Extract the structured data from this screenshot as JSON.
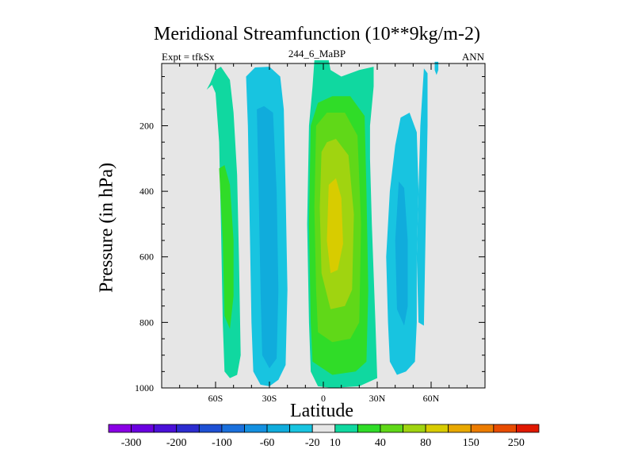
{
  "title": "Meridional Streamfunction (10**9kg/m-2)",
  "left_string": "Expt = tfkSx",
  "center_string": "244_6_MaBP",
  "right_string": "ANN",
  "chart_data": {
    "type": "heatmap",
    "title": "Meridional Streamfunction (10**9kg/m-2)",
    "xlabel": "Latitude",
    "ylabel": "Pressure (in hPa)",
    "xlim": [
      -90,
      90
    ],
    "ylim": [
      1000,
      10
    ],
    "x_ticks": [
      {
        "value": -60,
        "label": "60S"
      },
      {
        "value": -30,
        "label": "30S"
      },
      {
        "value": 0,
        "label": "0"
      },
      {
        "value": 30,
        "label": "30N"
      },
      {
        "value": 60,
        "label": "60N"
      }
    ],
    "y_ticks": [
      {
        "value": 200,
        "label": "200"
      },
      {
        "value": 400,
        "label": "400"
      },
      {
        "value": 600,
        "label": "600"
      },
      {
        "value": 800,
        "label": "800"
      },
      {
        "value": 1000,
        "label": "1000"
      }
    ],
    "background_color": "#e6e6e6",
    "colorbar": {
      "colors": [
        "#8a00e5",
        "#6a00e0",
        "#4a10d8",
        "#2c2cd0",
        "#1e50d4",
        "#1a70dc",
        "#1490e0",
        "#10acdc",
        "#18c4e0",
        "#e6e6e6",
        "#10d8a0",
        "#30dc28",
        "#60d818",
        "#a0d410",
        "#d8cc00",
        "#e8a800",
        "#ec7c00",
        "#e84c00",
        "#e01800"
      ],
      "labels": [
        "-300",
        "-200",
        "-100",
        "-60",
        "-20",
        "10",
        "40",
        "80",
        "150",
        "250"
      ],
      "label_boundaries": [
        1,
        3,
        5,
        7,
        9,
        10,
        12,
        14,
        16,
        18
      ]
    },
    "regions": [
      {
        "name": "sh-ferrel-outer",
        "band": "10",
        "color": "#10d8a0",
        "polygon": [
          [
            -65,
            90
          ],
          [
            -62,
            75
          ],
          [
            -60,
            100
          ],
          [
            -58,
            250
          ],
          [
            -57,
            500
          ],
          [
            -56,
            800
          ],
          [
            -55,
            950
          ],
          [
            -52,
            970
          ],
          [
            -48,
            960
          ],
          [
            -46,
            900
          ],
          [
            -47,
            600
          ],
          [
            -48,
            350
          ],
          [
            -50,
            160
          ],
          [
            -52,
            60
          ],
          [
            -57,
            20
          ],
          [
            -60,
            30
          ],
          [
            -63,
            70
          ]
        ]
      },
      {
        "name": "sh-ferrel-inner",
        "band": "40",
        "color": "#30dc28",
        "polygon": [
          [
            -58,
            330
          ],
          [
            -56,
            550
          ],
          [
            -55,
            780
          ],
          [
            -52,
            820
          ],
          [
            -50,
            720
          ],
          [
            -50,
            550
          ],
          [
            -52,
            380
          ],
          [
            -55,
            320
          ]
        ]
      },
      {
        "name": "sh-hadley-outer",
        "band": "-20",
        "color": "#18c4e0",
        "polygon": [
          [
            -43,
            50
          ],
          [
            -42,
            200
          ],
          [
            -41,
            500
          ],
          [
            -40,
            800
          ],
          [
            -39,
            950
          ],
          [
            -35,
            990
          ],
          [
            -30,
            995
          ],
          [
            -25,
            975
          ],
          [
            -21,
            930
          ],
          [
            -20,
            700
          ],
          [
            -21,
            400
          ],
          [
            -22,
            150
          ],
          [
            -24,
            50
          ],
          [
            -30,
            20
          ],
          [
            -38,
            22
          ]
        ]
      },
      {
        "name": "sh-hadley-inner",
        "band": "-60",
        "color": "#10acdc",
        "polygon": [
          [
            -37,
            150
          ],
          [
            -36,
            400
          ],
          [
            -35,
            700
          ],
          [
            -34,
            900
          ],
          [
            -30,
            940
          ],
          [
            -26,
            910
          ],
          [
            -25,
            700
          ],
          [
            -26,
            400
          ],
          [
            -28,
            160
          ],
          [
            -33,
            140
          ]
        ]
      },
      {
        "name": "tropical-outer",
        "band": "10",
        "color": "#10d8a0",
        "polygon": [
          [
            -5,
            0
          ],
          [
            -6,
            80
          ],
          [
            -8,
            200
          ],
          [
            -9,
            500
          ],
          [
            -8,
            800
          ],
          [
            -7,
            950
          ],
          [
            -3,
            995
          ],
          [
            5,
            1000
          ],
          [
            20,
            995
          ],
          [
            30,
            970
          ],
          [
            29,
            800
          ],
          [
            27,
            500
          ],
          [
            26,
            300
          ],
          [
            26,
            200
          ],
          [
            28,
            80
          ],
          [
            28,
            20
          ],
          [
            20,
            30
          ],
          [
            10,
            50
          ],
          [
            4,
            30
          ],
          [
            3,
            0
          ]
        ]
      },
      {
        "name": "tropical-40",
        "band": "40",
        "color": "#30dc28",
        "polygon": [
          [
            -7,
            200
          ],
          [
            -8,
            500
          ],
          [
            -7,
            800
          ],
          [
            -6,
            920
          ],
          [
            5,
            960
          ],
          [
            18,
            950
          ],
          [
            24,
            920
          ],
          [
            25,
            700
          ],
          [
            24,
            400
          ],
          [
            23,
            170
          ],
          [
            15,
            110
          ],
          [
            5,
            110
          ],
          [
            -3,
            130
          ]
        ]
      },
      {
        "name": "tropical-60",
        "band": "60",
        "color": "#60d818",
        "polygon": [
          [
            -4,
            200
          ],
          [
            -5,
            450
          ],
          [
            -4,
            700
          ],
          [
            -3,
            830
          ],
          [
            5,
            860
          ],
          [
            15,
            850
          ],
          [
            20,
            800
          ],
          [
            21,
            500
          ],
          [
            19,
            230
          ],
          [
            12,
            160
          ],
          [
            2,
            160
          ]
        ]
      },
      {
        "name": "tropical-80",
        "band": "80",
        "color": "#a0d410",
        "polygon": [
          [
            -1,
            280
          ],
          [
            -2,
            450
          ],
          [
            -1,
            650
          ],
          [
            4,
            760
          ],
          [
            12,
            750
          ],
          [
            16,
            700
          ],
          [
            17,
            470
          ],
          [
            14,
            290
          ],
          [
            7,
            240
          ],
          [
            2,
            250
          ]
        ]
      },
      {
        "name": "tropical-core",
        "band": "150",
        "color": "#d8cc00",
        "polygon": [
          [
            3,
            380
          ],
          [
            2,
            550
          ],
          [
            4,
            650
          ],
          [
            8,
            640
          ],
          [
            11,
            560
          ],
          [
            10,
            420
          ],
          [
            7,
            360
          ]
        ]
      },
      {
        "name": "nh-hadley-outer",
        "band": "-20",
        "color": "#18c4e0",
        "polygon": [
          [
            40,
            260
          ],
          [
            37,
            400
          ],
          [
            35,
            600
          ],
          [
            36,
            800
          ],
          [
            37,
            920
          ],
          [
            41,
            960
          ],
          [
            46,
            950
          ],
          [
            51,
            920
          ],
          [
            52,
            800
          ],
          [
            52,
            600
          ],
          [
            53,
            400
          ],
          [
            52,
            220
          ],
          [
            48,
            160
          ],
          [
            43,
            175
          ]
        ]
      },
      {
        "name": "nh-hadley-inner",
        "band": "-60",
        "color": "#10acdc",
        "polygon": [
          [
            42,
            370
          ],
          [
            40,
            550
          ],
          [
            41,
            760
          ],
          [
            45,
            810
          ],
          [
            47,
            750
          ],
          [
            47,
            550
          ],
          [
            45,
            390
          ]
        ]
      },
      {
        "name": "nh-ferrel-strip",
        "band": "-20",
        "color": "#18c4e0",
        "polygon": [
          [
            56,
            25
          ],
          [
            54,
            200
          ],
          [
            53,
            400
          ],
          [
            52,
            600
          ],
          [
            53,
            800
          ],
          [
            56,
            810
          ],
          [
            57,
            500
          ],
          [
            58,
            200
          ],
          [
            58,
            40
          ]
        ]
      },
      {
        "name": "nh-polar-blob",
        "band": "-20",
        "color": "#18c4e0",
        "polygon": [
          [
            62,
            5
          ],
          [
            62,
            30
          ],
          [
            63,
            45
          ],
          [
            64,
            30
          ],
          [
            64,
            5
          ]
        ]
      }
    ]
  }
}
